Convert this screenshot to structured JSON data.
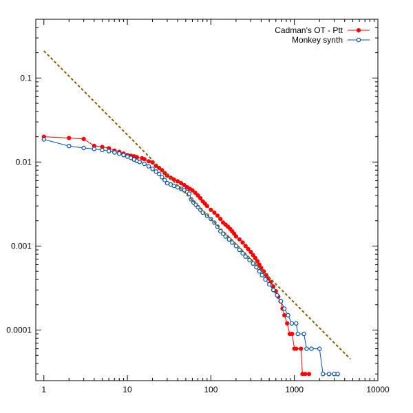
{
  "chart_data": {
    "type": "scatter",
    "x_scale": "log",
    "y_scale": "log",
    "xlim": [
      0.8,
      10000
    ],
    "ylim": [
      2.5e-05,
      0.5
    ],
    "x_ticks": [
      {
        "value": 1,
        "label": "1"
      },
      {
        "value": 10,
        "label": "10"
      },
      {
        "value": 100,
        "label": "100"
      },
      {
        "value": 1000,
        "label": "1000"
      },
      {
        "value": 10000,
        "label": "10000"
      }
    ],
    "y_ticks": [
      {
        "value": 0.0001,
        "label": "0.0001"
      },
      {
        "value": 0.001,
        "label": "0.001"
      },
      {
        "value": 0.01,
        "label": "0.01"
      },
      {
        "value": 0.1,
        "label": "0.1"
      }
    ],
    "legend_position": "top-right",
    "series": [
      {
        "name": "Cadman's OT - Ptt",
        "color": "#ff0000",
        "marker": "filled-circle",
        "line": true,
        "points": [
          [
            1,
            0.02
          ],
          [
            2,
            0.0193
          ],
          [
            3,
            0.0188
          ],
          [
            4,
            0.0156
          ],
          [
            5,
            0.0151
          ],
          [
            6,
            0.0146
          ],
          [
            7,
            0.0137
          ],
          [
            8,
            0.0132
          ],
          [
            9,
            0.0126
          ],
          [
            10,
            0.0121
          ],
          [
            11,
            0.0119
          ],
          [
            12,
            0.0117
          ],
          [
            13,
            0.0114
          ],
          [
            15,
            0.0111
          ],
          [
            16,
            0.0108
          ],
          [
            18,
            0.0102
          ],
          [
            20,
            0.0099
          ],
          [
            22,
            0.009
          ],
          [
            24,
            0.0085
          ],
          [
            26,
            0.008
          ],
          [
            28,
            0.0074
          ],
          [
            30,
            0.0069
          ],
          [
            33,
            0.0065
          ],
          [
            36,
            0.0062
          ],
          [
            40,
            0.0059
          ],
          [
            44,
            0.0056
          ],
          [
            48,
            0.0053
          ],
          [
            52,
            0.005
          ],
          [
            56,
            0.0048
          ],
          [
            60,
            0.0046
          ],
          [
            65,
            0.0043
          ],
          [
            70,
            0.004
          ],
          [
            75,
            0.0037
          ],
          [
            80,
            0.0034
          ],
          [
            85,
            0.0032
          ],
          [
            90,
            0.003
          ],
          [
            100,
            0.0027
          ],
          [
            110,
            0.0025
          ],
          [
            120,
            0.0023
          ],
          [
            130,
            0.0021
          ],
          [
            140,
            0.0019
          ],
          [
            150,
            0.0018
          ],
          [
            160,
            0.0017
          ],
          [
            170,
            0.0016
          ],
          [
            180,
            0.0015
          ],
          [
            190,
            0.0014
          ],
          [
            200,
            0.0013
          ],
          [
            220,
            0.0012
          ],
          [
            240,
            0.0011
          ],
          [
            260,
            0.001
          ],
          [
            280,
            0.00092
          ],
          [
            300,
            0.00085
          ],
          [
            320,
            0.00078
          ],
          [
            340,
            0.00072
          ],
          [
            360,
            0.00066
          ],
          [
            380,
            0.0006
          ],
          [
            400,
            0.00055
          ],
          [
            430,
            0.0005
          ],
          [
            460,
            0.00045
          ],
          [
            490,
            0.00041
          ],
          [
            520,
            0.00037
          ],
          [
            560,
            0.00033
          ],
          [
            600,
            0.00029
          ],
          [
            640,
            0.00025
          ],
          [
            680,
            0.00022
          ],
          [
            720,
            0.00018
          ],
          [
            760,
            0.00015
          ],
          [
            820,
            0.00012
          ],
          [
            880,
            9e-05
          ],
          [
            940,
            9e-05
          ],
          [
            1000,
            6e-05
          ],
          [
            1050,
            6e-05
          ],
          [
            1200,
            6e-05
          ],
          [
            1250,
            3e-05
          ],
          [
            1350,
            3e-05
          ],
          [
            1500,
            3e-05
          ]
        ]
      },
      {
        "name": "Monkey synth",
        "color": "#0050b0",
        "marker": "open-circle",
        "line": true,
        "points": [
          [
            1,
            0.0186
          ],
          [
            2,
            0.0155
          ],
          [
            3,
            0.0147
          ],
          [
            4,
            0.0143
          ],
          [
            5,
            0.0139
          ],
          [
            6,
            0.0135
          ],
          [
            7,
            0.013
          ],
          [
            8,
            0.0126
          ],
          [
            9,
            0.0121
          ],
          [
            10,
            0.0116
          ],
          [
            11,
            0.0112
          ],
          [
            12,
            0.0107
          ],
          [
            13,
            0.0103
          ],
          [
            14,
            0.01
          ],
          [
            16,
            0.0095
          ],
          [
            18,
            0.0089
          ],
          [
            20,
            0.0083
          ],
          [
            22,
            0.0077
          ],
          [
            24,
            0.0072
          ],
          [
            26,
            0.0066
          ],
          [
            28,
            0.0061
          ],
          [
            30,
            0.0056
          ],
          [
            33,
            0.0054
          ],
          [
            36,
            0.0052
          ],
          [
            40,
            0.005
          ],
          [
            44,
            0.0048
          ],
          [
            48,
            0.0046
          ],
          [
            52,
            0.0044
          ],
          [
            55,
            0.0042
          ],
          [
            58,
            0.0036
          ],
          [
            62,
            0.0033
          ],
          [
            66,
            0.0031
          ],
          [
            70,
            0.0029
          ],
          [
            75,
            0.0027
          ],
          [
            80,
            0.0025
          ],
          [
            90,
            0.0023
          ],
          [
            100,
            0.0021
          ],
          [
            110,
            0.0019
          ],
          [
            120,
            0.0017
          ],
          [
            130,
            0.0015
          ],
          [
            140,
            0.0014
          ],
          [
            150,
            0.0013
          ],
          [
            165,
            0.0012
          ],
          [
            180,
            0.0011
          ],
          [
            200,
            0.001
          ],
          [
            220,
            0.0009
          ],
          [
            240,
            0.00082
          ],
          [
            260,
            0.00075
          ],
          [
            290,
            0.00068
          ],
          [
            320,
            0.00062
          ],
          [
            350,
            0.00056
          ],
          [
            380,
            0.0005
          ],
          [
            410,
            0.00045
          ],
          [
            450,
            0.0004
          ],
          [
            500,
            0.00035
          ],
          [
            560,
            0.0003
          ],
          [
            620,
            0.00026
          ],
          [
            690,
            0.00022
          ],
          [
            760,
            0.00018
          ],
          [
            840,
            0.00015
          ],
          [
            930,
            0.00012
          ],
          [
            1050,
            0.00012
          ],
          [
            1100,
            9e-05
          ],
          [
            1300,
            9e-05
          ],
          [
            1400,
            6e-05
          ],
          [
            1600,
            6e-05
          ],
          [
            2000,
            6e-05
          ],
          [
            2200,
            3e-05
          ],
          [
            2600,
            3e-05
          ],
          [
            3000,
            3e-05
          ],
          [
            3300,
            3e-05
          ]
        ]
      },
      {
        "name": "",
        "color": "#806000",
        "marker": "none",
        "line": true,
        "dashed": true,
        "points": [
          [
            1,
            0.21
          ],
          [
            4700,
            4.5e-05
          ]
        ]
      }
    ]
  }
}
